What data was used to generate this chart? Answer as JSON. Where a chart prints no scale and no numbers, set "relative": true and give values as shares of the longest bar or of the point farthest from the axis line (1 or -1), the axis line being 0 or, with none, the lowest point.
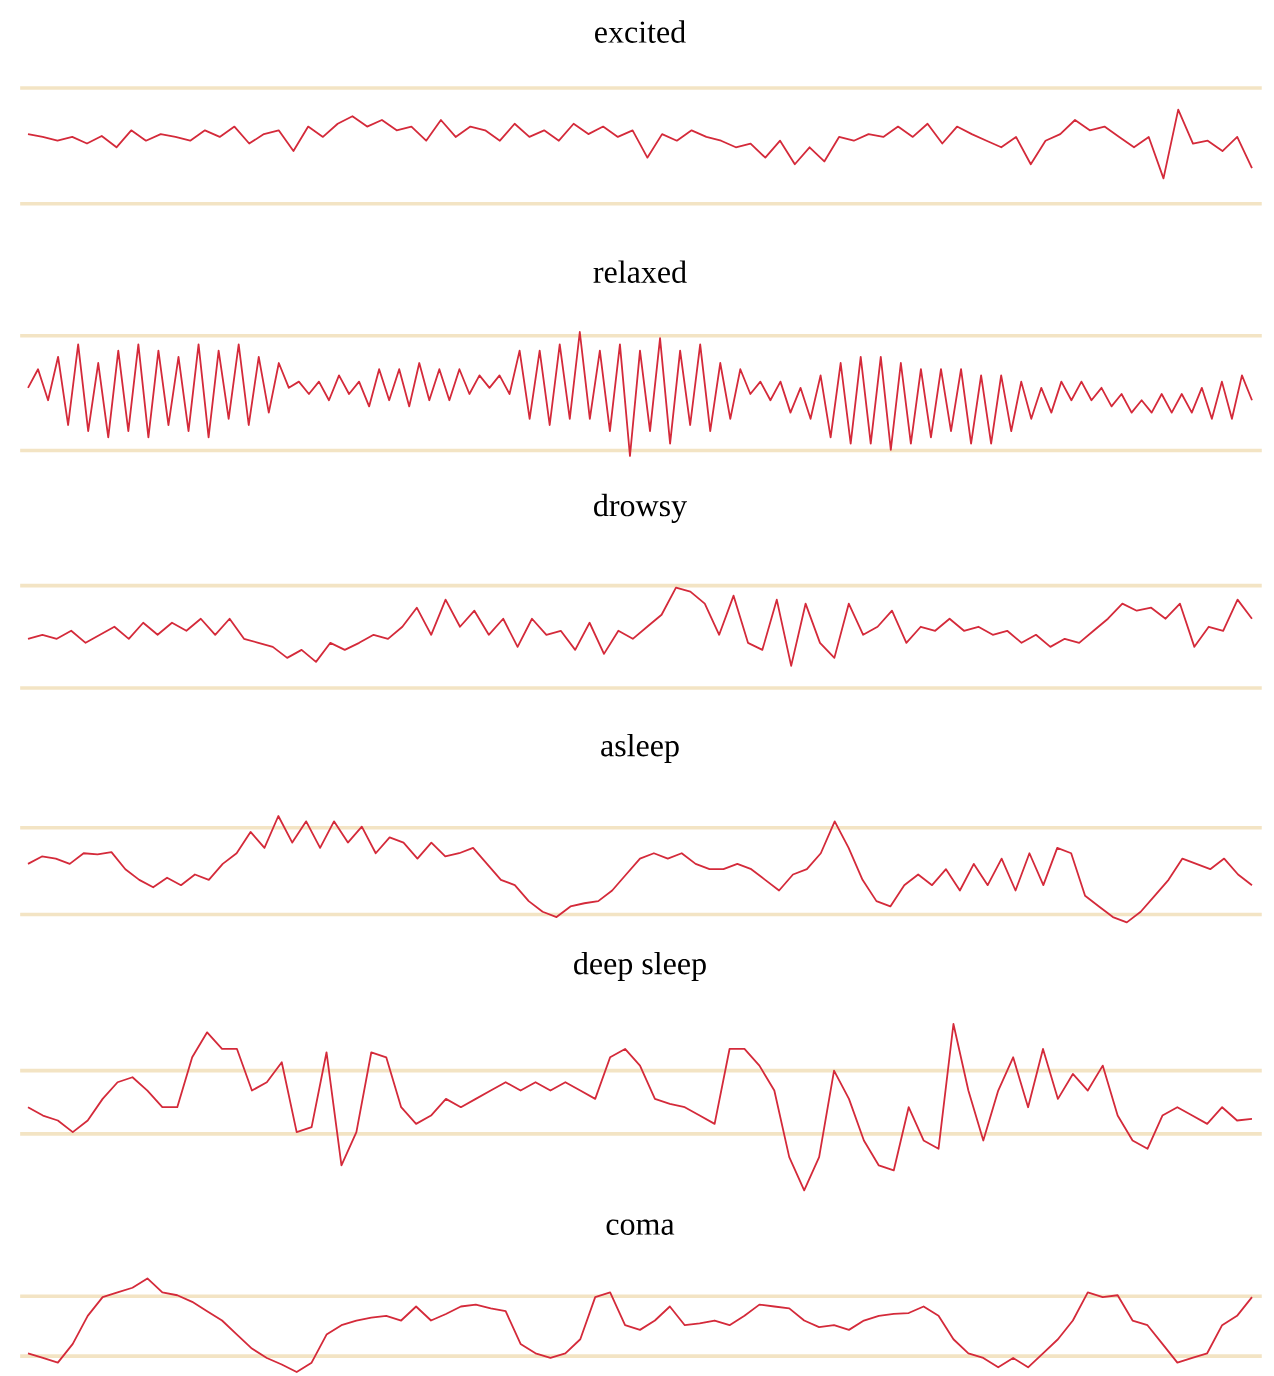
{
  "chart_data": [
    {
      "type": "line",
      "title": "excited",
      "relative": true,
      "tick_labels": false,
      "color": "#d42a3a",
      "categories": [
        null,
        null,
        null,
        null,
        null,
        null,
        null,
        null,
        null,
        null,
        null,
        null,
        null,
        null,
        null,
        null,
        null,
        null,
        null,
        null,
        null,
        null,
        null,
        null,
        null,
        null,
        null,
        null,
        null,
        null,
        null,
        null,
        null,
        null,
        null,
        null,
        null,
        null,
        null,
        null,
        null,
        null,
        null,
        null,
        null,
        null,
        null,
        null,
        null,
        null,
        null,
        null,
        null,
        null,
        null,
        null,
        null,
        null,
        null,
        null,
        null,
        null,
        null,
        null,
        null,
        null,
        null,
        null,
        null,
        null,
        null,
        null,
        null,
        null,
        null,
        null,
        null,
        null,
        null,
        null,
        null,
        null,
        null,
        null
      ],
      "values": [
        0.74,
        0.71,
        0.67,
        0.71,
        0.64,
        0.72,
        0.6,
        0.78,
        0.67,
        0.74,
        0.71,
        0.67,
        0.78,
        0.71,
        0.82,
        0.64,
        0.74,
        0.78,
        0.56,
        0.82,
        0.71,
        0.85,
        0.93,
        0.82,
        0.89,
        0.78,
        0.82,
        0.67,
        0.89,
        0.71,
        0.82,
        0.78,
        0.67,
        0.85,
        0.71,
        0.78,
        0.67,
        0.85,
        0.74,
        0.82,
        0.71,
        0.78,
        0.49,
        0.74,
        0.67,
        0.78,
        0.71,
        0.67,
        0.6,
        0.64,
        0.49,
        0.67,
        0.42,
        0.6,
        0.45,
        0.71,
        0.67,
        0.74,
        0.71,
        0.82,
        0.71,
        0.85,
        0.64,
        0.82,
        0.74,
        0.67,
        0.6,
        0.71,
        0.42,
        0.67,
        0.74,
        0.89,
        0.78,
        0.82,
        0.71,
        0.6,
        0.71,
        0.27,
        1.0,
        0.64,
        0.67,
        0.56,
        0.71,
        0.38
      ],
      "ref_lines": [
        {
          "axis": "y",
          "value": 1.23,
          "color": "#f3e4c4"
        },
        {
          "axis": "y",
          "value": 0,
          "color": "#f3e4c4"
        }
      ]
    },
    {
      "type": "line",
      "title": "relaxed",
      "relative": true,
      "tick_labels": false,
      "color": "#d42a3a",
      "categories": [
        null,
        null,
        null,
        null,
        null,
        null,
        null,
        null,
        null,
        null,
        null,
        null,
        null,
        null,
        null,
        null,
        null,
        null,
        null,
        null,
        null,
        null,
        null,
        null,
        null,
        null,
        null,
        null,
        null,
        null,
        null,
        null,
        null,
        null,
        null,
        null,
        null,
        null,
        null,
        null,
        null,
        null,
        null,
        null,
        null,
        null,
        null,
        null,
        null,
        null,
        null,
        null,
        null,
        null,
        null,
        null,
        null,
        null,
        null,
        null,
        null,
        null,
        null,
        null,
        null,
        null,
        null,
        null,
        null,
        null,
        null,
        null,
        null,
        null,
        null,
        null,
        null,
        null,
        null,
        null,
        null,
        null,
        null,
        null,
        null,
        null,
        null,
        null,
        null,
        null,
        null,
        null,
        null,
        null,
        null,
        null,
        null,
        null,
        null,
        null,
        null,
        null,
        null,
        null,
        null,
        null,
        null,
        null,
        null,
        null,
        null,
        null,
        null,
        null,
        null,
        null,
        null,
        null,
        null,
        null,
        null,
        null,
        null
      ],
      "values": [
        0.55,
        0.7,
        0.45,
        0.8,
        0.25,
        0.9,
        0.2,
        0.75,
        0.15,
        0.85,
        0.2,
        0.9,
        0.15,
        0.85,
        0.25,
        0.8,
        0.2,
        0.9,
        0.15,
        0.85,
        0.3,
        0.9,
        0.25,
        0.8,
        0.35,
        0.75,
        0.55,
        0.6,
        0.5,
        0.6,
        0.45,
        0.65,
        0.5,
        0.6,
        0.4,
        0.7,
        0.45,
        0.7,
        0.4,
        0.75,
        0.45,
        0.7,
        0.45,
        0.7,
        0.5,
        0.65,
        0.55,
        0.65,
        0.5,
        0.85,
        0.3,
        0.85,
        0.25,
        0.9,
        0.3,
        1.0,
        0.3,
        0.85,
        0.2,
        0.9,
        0.0,
        0.85,
        0.2,
        0.95,
        0.1,
        0.85,
        0.25,
        0.9,
        0.2,
        0.75,
        0.3,
        0.7,
        0.5,
        0.6,
        0.45,
        0.6,
        0.35,
        0.55,
        0.3,
        0.65,
        0.15,
        0.75,
        0.1,
        0.8,
        0.1,
        0.8,
        0.05,
        0.75,
        0.1,
        0.7,
        0.15,
        0.7,
        0.2,
        0.7,
        0.1,
        0.65,
        0.1,
        0.65,
        0.2,
        0.6,
        0.3,
        0.55,
        0.35,
        0.6,
        0.45,
        0.6,
        0.45,
        0.55,
        0.4,
        0.5,
        0.35,
        0.45,
        0.35,
        0.5,
        0.35,
        0.5,
        0.35,
        0.55,
        0.3,
        0.6,
        0.3,
        0.65,
        0.45
      ],
      "ref_lines": [
        {
          "axis": "y",
          "value": 0.97,
          "color": "#f3e4c4"
        },
        {
          "axis": "y",
          "value": 0.045,
          "color": "#f3e4c4"
        }
      ]
    },
    {
      "type": "line",
      "title": "drowsy",
      "relative": true,
      "tick_labels": false,
      "color": "#d42a3a",
      "categories": [
        null,
        null,
        null,
        null,
        null,
        null,
        null,
        null,
        null,
        null,
        null,
        null,
        null,
        null,
        null,
        null,
        null,
        null,
        null,
        null,
        null,
        null,
        null,
        null,
        null,
        null,
        null,
        null,
        null,
        null,
        null,
        null,
        null,
        null,
        null,
        null,
        null,
        null,
        null,
        null,
        null,
        null,
        null,
        null,
        null,
        null,
        null,
        null,
        null,
        null,
        null,
        null,
        null,
        null,
        null,
        null,
        null,
        null,
        null,
        null,
        null,
        null,
        null,
        null,
        null,
        null,
        null,
        null,
        null,
        null,
        null,
        null,
        null,
        null,
        null,
        null,
        null,
        null,
        null,
        null,
        null,
        null,
        null,
        null,
        null,
        null
      ],
      "values": [
        0.49,
        0.53,
        0.49,
        0.57,
        0.45,
        0.53,
        0.61,
        0.49,
        0.65,
        0.53,
        0.65,
        0.57,
        0.69,
        0.53,
        0.69,
        0.49,
        0.45,
        0.41,
        0.3,
        0.38,
        0.26,
        0.45,
        0.38,
        0.45,
        0.53,
        0.49,
        0.61,
        0.8,
        0.53,
        0.88,
        0.61,
        0.77,
        0.53,
        0.69,
        0.41,
        0.69,
        0.53,
        0.57,
        0.38,
        0.65,
        0.34,
        0.57,
        0.49,
        0.61,
        0.73,
        1.0,
        0.96,
        0.84,
        0.53,
        0.92,
        0.45,
        0.38,
        0.88,
        0.22,
        0.84,
        0.45,
        0.3,
        0.84,
        0.53,
        0.61,
        0.77,
        0.45,
        0.61,
        0.57,
        0.69,
        0.57,
        0.61,
        0.53,
        0.57,
        0.45,
        0.53,
        0.41,
        0.49,
        0.45,
        0.57,
        0.69,
        0.84,
        0.77,
        0.8,
        0.69,
        0.84,
        0.41,
        0.61,
        0.57,
        0.88,
        0.69
      ],
      "ref_lines": [
        {
          "axis": "y",
          "value": 1.02,
          "color": "#f3e4c4"
        },
        {
          "axis": "y",
          "value": 0,
          "color": "#f3e4c4"
        }
      ]
    },
    {
      "type": "line",
      "title": "asleep",
      "relative": true,
      "tick_labels": false,
      "color": "#d42a3a",
      "categories": [
        null,
        null,
        null,
        null,
        null,
        null,
        null,
        null,
        null,
        null,
        null,
        null,
        null,
        null,
        null,
        null,
        null,
        null,
        null,
        null,
        null,
        null,
        null,
        null,
        null,
        null,
        null,
        null,
        null,
        null,
        null,
        null,
        null,
        null,
        null,
        null,
        null,
        null,
        null,
        null,
        null,
        null,
        null,
        null,
        null,
        null,
        null,
        null,
        null,
        null,
        null,
        null,
        null,
        null,
        null,
        null,
        null,
        null,
        null,
        null,
        null,
        null,
        null,
        null,
        null,
        null,
        null,
        null,
        null,
        null,
        null,
        null,
        null,
        null,
        null,
        null,
        null,
        null,
        null,
        null,
        null,
        null,
        null,
        null,
        null,
        null,
        null,
        null,
        null
      ],
      "values": [
        0.55,
        0.62,
        0.6,
        0.55,
        0.65,
        0.64,
        0.66,
        0.5,
        0.4,
        0.33,
        0.42,
        0.35,
        0.45,
        0.4,
        0.55,
        0.65,
        0.85,
        0.7,
        1.0,
        0.75,
        0.95,
        0.7,
        0.95,
        0.75,
        0.9,
        0.65,
        0.8,
        0.75,
        0.6,
        0.75,
        0.62,
        0.65,
        0.7,
        0.55,
        0.4,
        0.35,
        0.2,
        0.1,
        0.05,
        0.15,
        0.18,
        0.2,
        0.3,
        0.45,
        0.6,
        0.65,
        0.6,
        0.65,
        0.55,
        0.5,
        0.5,
        0.55,
        0.5,
        0.4,
        0.3,
        0.45,
        0.5,
        0.65,
        0.95,
        0.7,
        0.4,
        0.2,
        0.15,
        0.35,
        0.45,
        0.35,
        0.5,
        0.3,
        0.55,
        0.35,
        0.6,
        0.3,
        0.65,
        0.35,
        0.7,
        0.65,
        0.25,
        0.15,
        0.05,
        0.0,
        0.1,
        0.25,
        0.4,
        0.6,
        0.55,
        0.5,
        0.6,
        0.45,
        0.35
      ],
      "ref_lines": [
        {
          "axis": "y",
          "value": 0.89,
          "color": "#f3e4c4"
        },
        {
          "axis": "y",
          "value": 0.075,
          "color": "#f3e4c4"
        }
      ]
    },
    {
      "type": "line",
      "title": "deep sleep",
      "relative": true,
      "tick_labels": false,
      "color": "#d42a3a",
      "categories": [
        null,
        null,
        null,
        null,
        null,
        null,
        null,
        null,
        null,
        null,
        null,
        null,
        null,
        null,
        null,
        null,
        null,
        null,
        null,
        null,
        null,
        null,
        null,
        null,
        null,
        null,
        null,
        null,
        null,
        null,
        null,
        null,
        null,
        null,
        null,
        null,
        null,
        null,
        null,
        null,
        null,
        null,
        null,
        null,
        null,
        null,
        null,
        null,
        null,
        null,
        null,
        null,
        null,
        null,
        null,
        null,
        null,
        null,
        null,
        null,
        null,
        null,
        null,
        null,
        null,
        null,
        null,
        null,
        null,
        null,
        null,
        null,
        null,
        null,
        null,
        null,
        null,
        null,
        null,
        null,
        null,
        null,
        null
      ],
      "values": [
        0.5,
        0.45,
        0.42,
        0.35,
        0.42,
        0.55,
        0.65,
        0.68,
        0.6,
        0.5,
        0.5,
        0.8,
        0.95,
        0.85,
        0.85,
        0.6,
        0.65,
        0.77,
        0.35,
        0.38,
        0.83,
        0.15,
        0.35,
        0.83,
        0.8,
        0.5,
        0.4,
        0.45,
        0.55,
        0.5,
        0.55,
        0.6,
        0.65,
        0.6,
        0.65,
        0.6,
        0.65,
        0.6,
        0.55,
        0.8,
        0.85,
        0.75,
        0.55,
        0.52,
        0.5,
        0.45,
        0.4,
        0.85,
        0.85,
        0.75,
        0.6,
        0.2,
        0.0,
        0.2,
        0.72,
        0.55,
        0.3,
        0.15,
        0.12,
        0.5,
        0.3,
        0.25,
        1.0,
        0.6,
        0.3,
        0.6,
        0.8,
        0.5,
        0.85,
        0.55,
        0.7,
        0.6,
        0.75,
        0.45,
        0.3,
        0.25,
        0.45,
        0.5,
        0.45,
        0.4,
        0.5,
        0.42,
        0.43
      ],
      "ref_lines": [
        {
          "axis": "y",
          "value": 0.72,
          "color": "#f3e4c4"
        },
        {
          "axis": "y",
          "value": 0.34,
          "color": "#f3e4c4"
        }
      ]
    },
    {
      "type": "line",
      "title": "coma",
      "relative": true,
      "tick_labels": false,
      "color": "#d42a3a",
      "categories": [
        null,
        null,
        null,
        null,
        null,
        null,
        null,
        null,
        null,
        null,
        null,
        null,
        null,
        null,
        null,
        null,
        null,
        null,
        null,
        null,
        null,
        null,
        null,
        null,
        null,
        null,
        null,
        null,
        null,
        null,
        null,
        null,
        null,
        null,
        null,
        null,
        null,
        null,
        null,
        null,
        null,
        null,
        null,
        null,
        null,
        null,
        null,
        null,
        null,
        null,
        null,
        null,
        null,
        null,
        null,
        null,
        null,
        null,
        null,
        null,
        null,
        null,
        null,
        null,
        null,
        null,
        null,
        null,
        null,
        null,
        null,
        null,
        null,
        null,
        null,
        null,
        null,
        null,
        null,
        null,
        null,
        null,
        null
      ],
      "values": [
        0.2,
        0.15,
        0.1,
        0.3,
        0.6,
        0.8,
        0.85,
        0.9,
        1.0,
        0.85,
        0.82,
        0.75,
        0.65,
        0.55,
        0.4,
        0.25,
        0.15,
        0.08,
        0.0,
        0.1,
        0.4,
        0.5,
        0.55,
        0.58,
        0.6,
        0.55,
        0.7,
        0.55,
        0.62,
        0.7,
        0.72,
        0.68,
        0.65,
        0.3,
        0.2,
        0.15,
        0.2,
        0.35,
        0.8,
        0.85,
        0.5,
        0.45,
        0.55,
        0.7,
        0.5,
        0.52,
        0.55,
        0.5,
        0.6,
        0.72,
        0.7,
        0.68,
        0.55,
        0.48,
        0.5,
        0.45,
        0.55,
        0.6,
        0.62,
        0.63,
        0.7,
        0.6,
        0.35,
        0.2,
        0.15,
        0.05,
        0.15,
        0.05,
        0.2,
        0.35,
        0.55,
        0.85,
        0.8,
        0.82,
        0.55,
        0.5,
        0.3,
        0.1,
        0.15,
        0.2,
        0.5,
        0.6,
        0.8
      ],
      "ref_lines": [
        {
          "axis": "y",
          "value": 0.81,
          "color": "#f3e4c4"
        },
        {
          "axis": "y",
          "value": 0.17,
          "color": "#f3e4c4"
        }
      ]
    }
  ]
}
